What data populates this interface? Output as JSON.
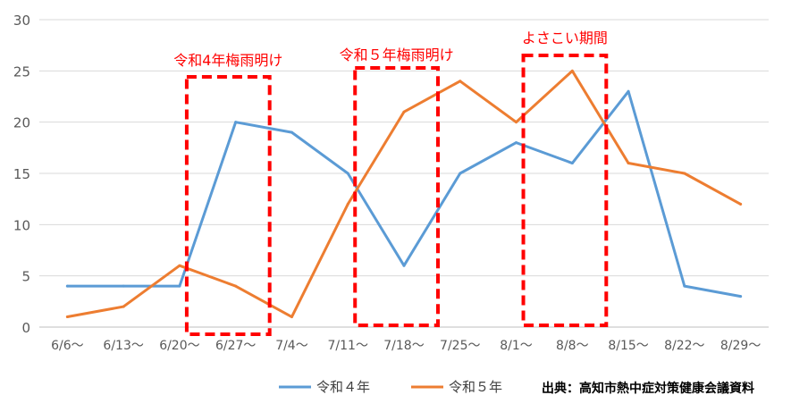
{
  "chart_data": {
    "type": "line",
    "categories": [
      "6/6～",
      "6/13～",
      "6/20～",
      "6/27～",
      "7/4～",
      "7/11～",
      "7/18～",
      "7/25～",
      "8/1～",
      "8/8～",
      "8/15～",
      "8/22～",
      "8/29～"
    ],
    "series": [
      {
        "name": "令和４年",
        "color": "#5b9bd5",
        "values": [
          4,
          4,
          4,
          20,
          19,
          15,
          6,
          15,
          18,
          16,
          23,
          4,
          3
        ]
      },
      {
        "name": "令和５年",
        "color": "#ed7d31",
        "values": [
          1,
          2,
          6,
          4,
          1,
          12,
          21,
          24,
          20,
          25,
          16,
          15,
          12
        ]
      }
    ],
    "ylim": [
      0,
      30
    ],
    "yticks": [
      0,
      5,
      10,
      15,
      20,
      25,
      30
    ],
    "grid": true,
    "legend": "bottom",
    "annotations": [
      {
        "text": "令和4年梅雨明け",
        "from": "6/20～",
        "to": "6/27～",
        "color": "#ff0000"
      },
      {
        "text": "令和５年梅雨明け",
        "from": "7/11～",
        "to": "7/18～",
        "color": "#ff0000"
      },
      {
        "text": "よさこい期間",
        "from": "8/1～",
        "to": "8/8～",
        "color": "#ff0000"
      }
    ],
    "source": "出典：高知市熱中症対策健康会議資料"
  }
}
